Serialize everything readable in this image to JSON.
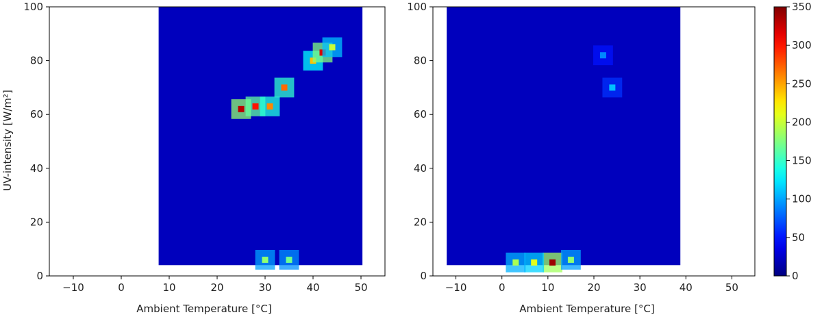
{
  "chart_data": [
    {
      "type": "heatmap",
      "title": "",
      "xlabel": "Ambient Temperature [°C]",
      "ylabel": "UV-intensity [W/m²]",
      "xlim": [
        -15,
        55
      ],
      "ylim": [
        0,
        100
      ],
      "x_ticks": [
        -10,
        0,
        10,
        20,
        30,
        40,
        50
      ],
      "y_ticks": [
        0,
        20,
        40,
        60,
        80,
        100
      ],
      "data_extent_x": [
        7.8,
        50.3
      ],
      "data_extent_y": [
        4,
        100
      ],
      "hotspots": [
        {
          "x": 25,
          "y": 62,
          "value": 330
        },
        {
          "x": 28,
          "y": 63,
          "value": 300
        },
        {
          "x": 31,
          "y": 63,
          "value": 260
        },
        {
          "x": 34,
          "y": 70,
          "value": 270
        },
        {
          "x": 40,
          "y": 80,
          "value": 240
        },
        {
          "x": 42,
          "y": 83,
          "value": 320
        },
        {
          "x": 44,
          "y": 85,
          "value": 200
        },
        {
          "x": 30,
          "y": 6,
          "value": 180
        },
        {
          "x": 35,
          "y": 6,
          "value": 170
        }
      ]
    },
    {
      "type": "heatmap",
      "title": "",
      "xlabel": "Ambient Temperature [°C]",
      "ylabel": "",
      "xlim": [
        -15,
        55
      ],
      "ylim": [
        0,
        100
      ],
      "x_ticks": [
        -10,
        0,
        10,
        20,
        30,
        40,
        50
      ],
      "y_ticks": [
        0,
        20,
        40,
        60,
        80,
        100
      ],
      "data_extent_x": [
        -12,
        38.8
      ],
      "data_extent_y": [
        4,
        100
      ],
      "hotspots": [
        {
          "x": 11,
          "y": 5,
          "value": 340
        },
        {
          "x": 7,
          "y": 5,
          "value": 210
        },
        {
          "x": 3,
          "y": 5,
          "value": 190
        },
        {
          "x": 15,
          "y": 6,
          "value": 180
        },
        {
          "x": 24,
          "y": 70,
          "value": 110
        },
        {
          "x": 22,
          "y": 82,
          "value": 90
        }
      ]
    }
  ],
  "colorbar": {
    "min": 0,
    "max": 350,
    "ticks": [
      0,
      50,
      100,
      150,
      200,
      250,
      300,
      350
    ],
    "colormap": "jet"
  }
}
